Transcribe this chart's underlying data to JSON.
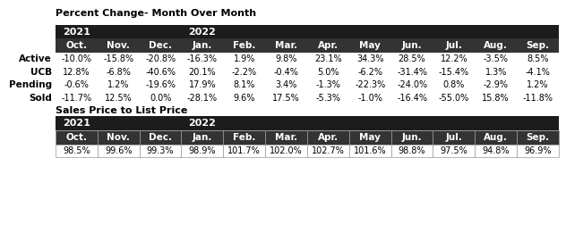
{
  "title1": "Percent Change- Month Over Month",
  "title2": "Sales Price to List Price",
  "col_headers": [
    "Oct.",
    "Nov.",
    "Dec.",
    "Jan.",
    "Feb.",
    "Mar.",
    "Apr.",
    "May",
    "Jun.",
    "Jul.",
    "Aug.",
    "Sep."
  ],
  "row_labels": [
    "Active",
    "UCB",
    "Pending",
    "Sold"
  ],
  "table1_data": [
    [
      "-10.0%",
      "-15.8%",
      "-20.8%",
      "-16.3%",
      "1.9%",
      "9.8%",
      "23.1%",
      "34.3%",
      "28.5%",
      "12.2%",
      "-3.5%",
      "8.5%"
    ],
    [
      "12.8%",
      "-6.8%",
      "-40.6%",
      "20.1%",
      "-2.2%",
      "-0.4%",
      "5.0%",
      "-6.2%",
      "-31.4%",
      "-15.4%",
      "1.3%",
      "-4.1%"
    ],
    [
      "-0.6%",
      "1.2%",
      "-19.6%",
      "17.9%",
      "8.1%",
      "3.4%",
      "-1.3%",
      "-22.3%",
      "-24.0%",
      "0.8%",
      "-2.9%",
      "1.2%"
    ],
    [
      "-11.7%",
      "12.5%",
      "0.0%",
      "-28.1%",
      "9.6%",
      "17.5%",
      "-5.3%",
      "-1.0%",
      "-16.4%",
      "-55.0%",
      "15.8%",
      "-11.8%"
    ]
  ],
  "table2_data": [
    "98.5%",
    "99.6%",
    "99.3%",
    "98.9%",
    "101.7%",
    "102.0%",
    "102.7%",
    "101.6%",
    "98.8%",
    "97.5%",
    "94.8%",
    "96.9%"
  ],
  "header_dark": "#1c1c1c",
  "header_mid": "#333333",
  "header_fg": "#ffffff",
  "data_fg": "#000000",
  "border_color": "#999999",
  "title_fontsize": 8,
  "year_fontsize": 8,
  "col_fontsize": 7.5,
  "data_fontsize": 7,
  "label_fontsize": 7.5,
  "fig_w": 6.32,
  "fig_h": 2.7,
  "dpi": 100
}
